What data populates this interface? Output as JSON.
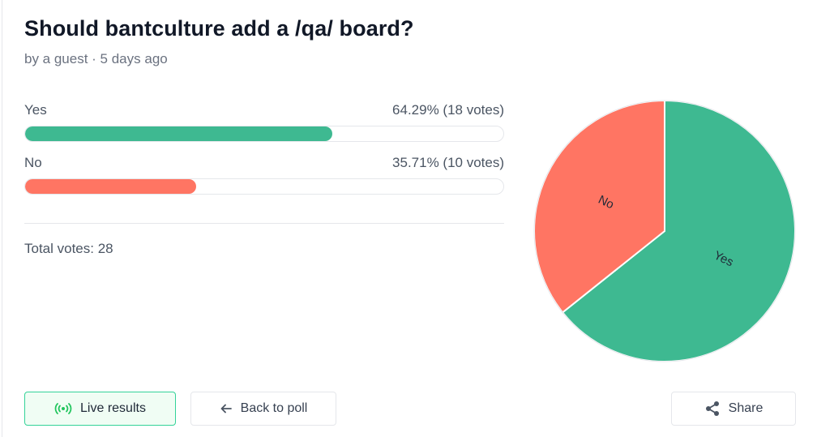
{
  "header": {
    "title": "Should bantculture add a /qa/ board?",
    "subtitle": "by a guest · 5 days ago"
  },
  "chart_data": {
    "type": "pie",
    "categories": [
      "Yes",
      "No"
    ],
    "values": [
      18,
      10
    ],
    "percent_labels": [
      "64.29% (18 votes)",
      "35.71% (10 votes)"
    ],
    "colors": [
      "#3eb991",
      "#ff7563"
    ]
  },
  "total_votes_label": "Total votes: 28",
  "buttons": {
    "live": "Live results",
    "back": "Back to poll",
    "share": "Share"
  }
}
